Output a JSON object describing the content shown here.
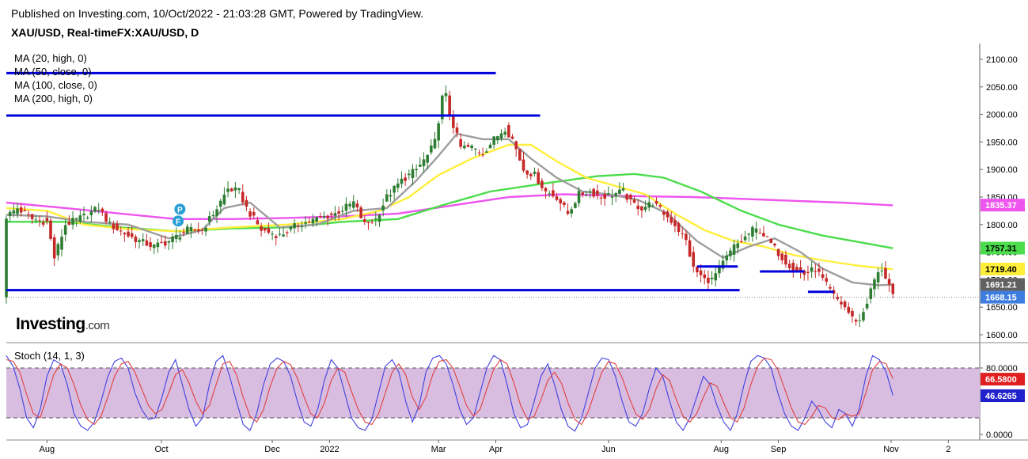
{
  "header": {
    "published": "Published on Investing.com, 10/Oct/2022 - 21:03:28 GMT, Powered by TradingView.",
    "symbol": "XAU/USD, Real-timeFX:XAU/USD, D"
  },
  "logo": {
    "text": "Investing",
    "suffix": ".com"
  },
  "colors": {
    "ma20": "#9e9e9e",
    "ma50": "#ffee3a",
    "ma100": "#4cdd4c",
    "ma200": "#ee55ee",
    "up": "#2e7d32",
    "down": "#c62828",
    "levels": "#0000dd",
    "stoch_k": "#4040e0",
    "stoch_d": "#e04040",
    "stoch_band": "#d8bde0"
  },
  "chart_data": [
    {
      "type": "candlestick",
      "title": "XAU/USD, Real-timeFX:XAU/USD, D",
      "indicators": [
        "MA (20, high, 0)",
        "MA (50, close, 0)",
        "MA (100, close, 0)",
        "MA (200, high, 0)"
      ],
      "x_ticks": [
        "Aug",
        "Oct",
        "Dec",
        "2022",
        "Mar",
        "Apr",
        "Jun",
        "Aug",
        "Sep",
        "Nov",
        "2"
      ],
      "x_tick_days": [
        0,
        62,
        122,
        153,
        212,
        243,
        304,
        365,
        396,
        457,
        488
      ],
      "y_ticks": [
        "2100.00",
        "2050.00",
        "2000.00",
        "1950.00",
        "1900.00",
        "1850.00",
        "1800.00",
        "1750.00",
        "1700.00",
        "1650.00",
        "1600.00"
      ],
      "ylim": [
        1580,
        2110
      ],
      "last_values": [
        {
          "label": "1835.37",
          "value": 1835.37,
          "series": "ma200"
        },
        {
          "label": "1757.31",
          "value": 1757.31,
          "series": "ma100"
        },
        {
          "label": "1719.40",
          "value": 1719.4,
          "series": "ma50"
        },
        {
          "label": "1691.21",
          "value": 1691.21,
          "series": "ma20"
        },
        {
          "label": "1668.15",
          "value": 1668.15,
          "series": "price"
        }
      ],
      "markers": [
        {
          "day": 72,
          "label": "P"
        },
        {
          "day": 71,
          "label": "F"
        }
      ],
      "price_path": [
        [
          -22,
          1815
        ],
        [
          -16,
          1830
        ],
        [
          -8,
          1810
        ],
        [
          0,
          1805
        ],
        [
          4,
          1740
        ],
        [
          10,
          1800
        ],
        [
          20,
          1815
        ],
        [
          28,
          1830
        ],
        [
          34,
          1800
        ],
        [
          44,
          1780
        ],
        [
          50,
          1770
        ],
        [
          58,
          1760
        ],
        [
          66,
          1770
        ],
        [
          76,
          1790
        ],
        [
          84,
          1790
        ],
        [
          92,
          1830
        ],
        [
          98,
          1865
        ],
        [
          104,
          1860
        ],
        [
          108,
          1830
        ],
        [
          116,
          1790
        ],
        [
          126,
          1780
        ],
        [
          136,
          1800
        ],
        [
          146,
          1810
        ],
        [
          156,
          1820
        ],
        [
          166,
          1840
        ],
        [
          172,
          1800
        ],
        [
          178,
          1810
        ],
        [
          184,
          1850
        ],
        [
          192,
          1880
        ],
        [
          200,
          1900
        ],
        [
          206,
          1925
        ],
        [
          210,
          1950
        ],
        [
          215,
          2050
        ],
        [
          218,
          2000
        ],
        [
          224,
          1940
        ],
        [
          230,
          1940
        ],
        [
          236,
          1930
        ],
        [
          242,
          1955
        ],
        [
          248,
          1975
        ],
        [
          252,
          1955
        ],
        [
          258,
          1900
        ],
        [
          264,
          1890
        ],
        [
          270,
          1860
        ],
        [
          276,
          1850
        ],
        [
          282,
          1820
        ],
        [
          288,
          1855
        ],
        [
          294,
          1860
        ],
        [
          300,
          1850
        ],
        [
          306,
          1855
        ],
        [
          312,
          1860
        ],
        [
          316,
          1840
        ],
        [
          322,
          1830
        ],
        [
          328,
          1840
        ],
        [
          334,
          1820
        ],
        [
          340,
          1800
        ],
        [
          346,
          1770
        ],
        [
          350,
          1720
        ],
        [
          356,
          1700
        ],
        [
          360,
          1700
        ],
        [
          366,
          1730
        ],
        [
          372,
          1760
        ],
        [
          376,
          1770
        ],
        [
          382,
          1790
        ],
        [
          386,
          1790
        ],
        [
          392,
          1765
        ],
        [
          398,
          1740
        ],
        [
          404,
          1720
        ],
        [
          410,
          1710
        ],
        [
          416,
          1720
        ],
        [
          420,
          1700
        ],
        [
          426,
          1670
        ],
        [
          432,
          1650
        ],
        [
          436,
          1630
        ],
        [
          440,
          1625
        ],
        [
          444,
          1660
        ],
        [
          448,
          1700
        ],
        [
          452,
          1720
        ],
        [
          456,
          1690
        ],
        [
          458,
          1668
        ]
      ],
      "levels": [
        {
          "value": 2075,
          "from_day": -22,
          "to_day": 243
        },
        {
          "value": 1998,
          "from_day": -22,
          "to_day": 267
        },
        {
          "value": 1681,
          "from_day": -22,
          "to_day": 375
        },
        {
          "value": 1724,
          "from_day": 352,
          "to_day": 374
        },
        {
          "value": 1715,
          "from_day": 386,
          "to_day": 410
        },
        {
          "value": 1678,
          "from_day": 412,
          "to_day": 426
        }
      ],
      "ma_paths": {
        "ma20": [
          [
            -22,
            1818
          ],
          [
            0,
            1815
          ],
          [
            20,
            1805
          ],
          [
            44,
            1800
          ],
          [
            66,
            1775
          ],
          [
            84,
            1790
          ],
          [
            96,
            1830
          ],
          [
            110,
            1840
          ],
          [
            126,
            1795
          ],
          [
            146,
            1800
          ],
          [
            166,
            1825
          ],
          [
            184,
            1830
          ],
          [
            200,
            1880
          ],
          [
            212,
            1925
          ],
          [
            222,
            1965
          ],
          [
            236,
            1955
          ],
          [
            250,
            1955
          ],
          [
            262,
            1920
          ],
          [
            276,
            1885
          ],
          [
            290,
            1860
          ],
          [
            304,
            1855
          ],
          [
            320,
            1845
          ],
          [
            336,
            1820
          ],
          [
            352,
            1770
          ],
          [
            366,
            1740
          ],
          [
            380,
            1760
          ],
          [
            394,
            1775
          ],
          [
            408,
            1750
          ],
          [
            420,
            1720
          ],
          [
            436,
            1695
          ],
          [
            450,
            1690
          ],
          [
            458,
            1691
          ]
        ],
        "ma50": [
          [
            -22,
            1830
          ],
          [
            0,
            1825
          ],
          [
            20,
            1800
          ],
          [
            44,
            1792
          ],
          [
            70,
            1788
          ],
          [
            100,
            1795
          ],
          [
            130,
            1800
          ],
          [
            160,
            1810
          ],
          [
            180,
            1825
          ],
          [
            196,
            1850
          ],
          [
            212,
            1890
          ],
          [
            230,
            1920
          ],
          [
            250,
            1945
          ],
          [
            262,
            1945
          ],
          [
            276,
            1915
          ],
          [
            292,
            1885
          ],
          [
            308,
            1870
          ],
          [
            324,
            1855
          ],
          [
            340,
            1820
          ],
          [
            356,
            1790
          ],
          [
            372,
            1770
          ],
          [
            388,
            1760
          ],
          [
            404,
            1745
          ],
          [
            420,
            1735
          ],
          [
            440,
            1725
          ],
          [
            458,
            1719
          ]
        ],
        "ma100": [
          [
            -22,
            1805
          ],
          [
            10,
            1805
          ],
          [
            40,
            1795
          ],
          [
            70,
            1788
          ],
          [
            100,
            1793
          ],
          [
            130,
            1795
          ],
          [
            160,
            1805
          ],
          [
            190,
            1810
          ],
          [
            214,
            1835
          ],
          [
            240,
            1860
          ],
          [
            270,
            1875
          ],
          [
            298,
            1888
          ],
          [
            318,
            1892
          ],
          [
            334,
            1885
          ],
          [
            354,
            1860
          ],
          [
            376,
            1825
          ],
          [
            396,
            1800
          ],
          [
            420,
            1780
          ],
          [
            440,
            1768
          ],
          [
            458,
            1757
          ]
        ],
        "ma200": [
          [
            -22,
            1840
          ],
          [
            10,
            1830
          ],
          [
            40,
            1820
          ],
          [
            70,
            1810
          ],
          [
            100,
            1810
          ],
          [
            130,
            1812
          ],
          [
            160,
            1815
          ],
          [
            190,
            1820
          ],
          [
            220,
            1835
          ],
          [
            250,
            1850
          ],
          [
            280,
            1855
          ],
          [
            310,
            1852
          ],
          [
            350,
            1850
          ],
          [
            390,
            1845
          ],
          [
            430,
            1840
          ],
          [
            458,
            1835
          ]
        ]
      }
    },
    {
      "type": "line",
      "title": "Stoch (14, 1, 3)",
      "y_ticks": [
        "80.0000",
        "0.0000"
      ],
      "ylim": [
        -5,
        105
      ],
      "bands": [
        20,
        80
      ],
      "last_values": [
        {
          "label": "66.5800",
          "value": 66.58,
          "series": "d"
        },
        {
          "label": "46.6265",
          "value": 46.6265,
          "series": "k"
        }
      ],
      "series": [
        {
          "key": "k",
          "values": [
            95,
            82,
            55,
            20,
            8,
            30,
            70,
            90,
            85,
            60,
            25,
            10,
            5,
            15,
            40,
            70,
            88,
            92,
            80,
            50,
            30,
            18,
            20,
            45,
            75,
            90,
            60,
            30,
            10,
            20,
            60,
            88,
            95,
            70,
            40,
            12,
            5,
            25,
            60,
            85,
            92,
            88,
            70,
            40,
            15,
            10,
            30,
            65,
            90,
            80,
            50,
            20,
            8,
            5,
            18,
            50,
            82,
            90,
            75,
            40,
            15,
            35,
            75,
            92,
            95,
            85,
            60,
            30,
            12,
            20,
            50,
            80,
            95,
            90,
            60,
            25,
            8,
            12,
            40,
            70,
            85,
            60,
            30,
            10,
            4,
            20,
            50,
            80,
            92,
            90,
            70,
            40,
            15,
            10,
            25,
            55,
            80,
            70,
            40,
            15,
            5,
            20,
            45,
            70,
            60,
            35,
            15,
            5,
            25,
            60,
            88,
            95,
            92,
            80,
            50,
            25,
            10,
            5,
            20,
            40,
            30,
            15,
            8,
            30,
            25,
            10,
            30,
            70,
            95,
            90,
            75,
            47
          ]
        },
        {
          "key": "d",
          "values": [
            90,
            88,
            75,
            48,
            25,
            20,
            45,
            72,
            85,
            80,
            60,
            35,
            18,
            12,
            22,
            45,
            70,
            85,
            88,
            75,
            55,
            35,
            25,
            30,
            50,
            72,
            78,
            62,
            40,
            25,
            35,
            60,
            85,
            88,
            72,
            45,
            22,
            15,
            30,
            58,
            80,
            88,
            84,
            68,
            45,
            25,
            20,
            38,
            65,
            80,
            75,
            52,
            30,
            15,
            12,
            25,
            50,
            75,
            85,
            72,
            45,
            30,
            45,
            72,
            88,
            90,
            80,
            58,
            35,
            22,
            30,
            55,
            78,
            90,
            85,
            62,
            35,
            18,
            22,
            42,
            65,
            75,
            62,
            38,
            18,
            12,
            28,
            52,
            75,
            88,
            85,
            68,
            45,
            25,
            18,
            30,
            55,
            72,
            65,
            42,
            22,
            15,
            25,
            45,
            62,
            58,
            38,
            20,
            15,
            32,
            60,
            82,
            92,
            90,
            78,
            55,
            32,
            15,
            12,
            22,
            35,
            32,
            20,
            18,
            25,
            22,
            25,
            50,
            78,
            88,
            85,
            67
          ]
        }
      ]
    }
  ]
}
